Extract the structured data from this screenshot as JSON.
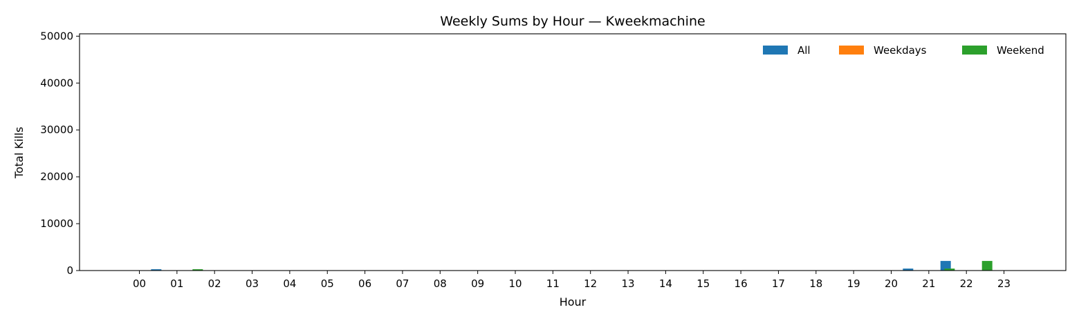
{
  "chart_data": {
    "type": "bar",
    "title": "Weekly Sums by Hour — Kweekmachine",
    "xlabel": "Hour",
    "ylabel": "Total Kills",
    "categories": [
      "00",
      "01",
      "02",
      "03",
      "04",
      "05",
      "06",
      "07",
      "08",
      "09",
      "10",
      "11",
      "12",
      "13",
      "14",
      "15",
      "16",
      "17",
      "18",
      "19",
      "20",
      "21",
      "22",
      "23"
    ],
    "series": [
      {
        "name": "All",
        "color": "#1f77b4",
        "values": [
          0,
          280,
          0,
          0,
          0,
          0,
          0,
          0,
          0,
          0,
          0,
          0,
          0,
          0,
          0,
          0,
          0,
          0,
          0,
          0,
          0,
          420,
          2050,
          0
        ]
      },
      {
        "name": "Weekdays",
        "color": "#ff7f0e",
        "values": [
          0,
          0,
          0,
          0,
          0,
          0,
          0,
          0,
          0,
          0,
          0,
          0,
          0,
          0,
          0,
          0,
          0,
          0,
          0,
          0,
          0,
          0,
          0,
          0
        ]
      },
      {
        "name": "Weekend",
        "color": "#2ca02c",
        "values": [
          0,
          280,
          0,
          0,
          0,
          0,
          0,
          0,
          0,
          0,
          0,
          0,
          0,
          0,
          0,
          0,
          0,
          0,
          0,
          0,
          0,
          420,
          2050,
          0
        ]
      }
    ],
    "ylim": [
      0,
      50500
    ],
    "yticks": [
      0,
      10000,
      20000,
      30000,
      40000,
      50000
    ],
    "legend_position": "top-right",
    "grid": false
  }
}
